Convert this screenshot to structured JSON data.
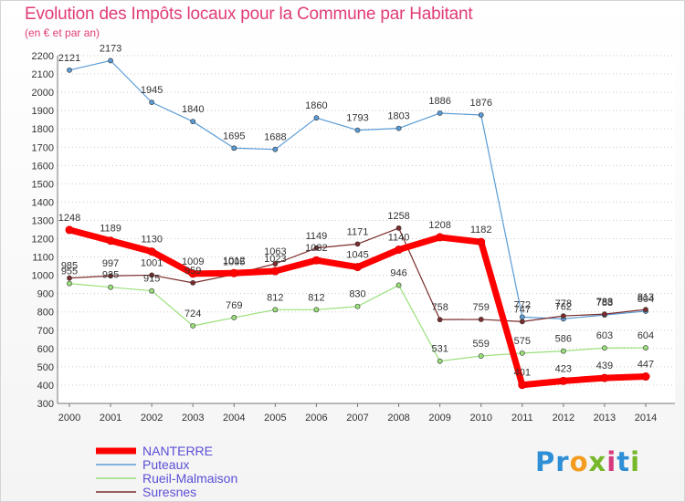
{
  "title": "Evolution des Impôts locaux pour la Commune par Habitant",
  "subtitle": "(en € et par an)",
  "logo": {
    "letters": [
      "P",
      "r",
      "o",
      "x",
      "i",
      "t",
      "i"
    ],
    "colors": [
      "#2e8fd6",
      "#2e8fd6",
      "#f39c1f",
      "#76b82a",
      "#d63a7e",
      "#2e8fd6",
      "#76b82a"
    ]
  },
  "chart_data": {
    "type": "line",
    "title": "Evolution des Impôts locaux pour la Commune par Habitant",
    "ylabel": "(en € et par an)",
    "xlabel": "",
    "ylim": [
      300,
      2200
    ],
    "yticks": [
      300,
      400,
      500,
      600,
      700,
      800,
      900,
      1000,
      1100,
      1200,
      1300,
      1400,
      1500,
      1600,
      1700,
      1800,
      1900,
      2000,
      2100,
      2200
    ],
    "grid": "horizontal-dashed",
    "legend": "bottom-left",
    "categories": [
      "2000",
      "2001",
      "2002",
      "2003",
      "2004",
      "2005",
      "2006",
      "2007",
      "2008",
      "2009",
      "2010",
      "2011",
      "2012",
      "2013",
      "2014"
    ],
    "series": [
      {
        "name": "Puteaux",
        "color": "#5a9bd5",
        "width": 1.2,
        "values": [
          2121,
          2173,
          1945,
          1840,
          1695,
          1688,
          1860,
          1793,
          1803,
          1886,
          1876,
          772,
          762,
          783,
          804
        ]
      },
      {
        "name": "Rueil-Malmaison",
        "color": "#99e07a",
        "width": 1.2,
        "values": [
          955,
          935,
          915,
          724,
          769,
          812,
          812,
          830,
          946,
          531,
          559,
          575,
          586,
          603,
          604
        ]
      },
      {
        "name": "Suresnes",
        "color": "#7b2c2c",
        "width": 1.2,
        "values": [
          985,
          997,
          1001,
          959,
          1005,
          1063,
          1149,
          1171,
          1258,
          758,
          759,
          747,
          778,
          788,
          813
        ]
      },
      {
        "name": "NANTERRE",
        "color": "#ff0000",
        "width": 7,
        "values": [
          1248,
          1189,
          1130,
          1009,
          1012,
          1023,
          1082,
          1045,
          1140,
          1208,
          1182,
          401,
          423,
          439,
          447
        ]
      }
    ],
    "legend_entries": [
      "NANTERRE",
      "Puteaux",
      "Rueil-Malmaison",
      "Suresnes"
    ]
  }
}
